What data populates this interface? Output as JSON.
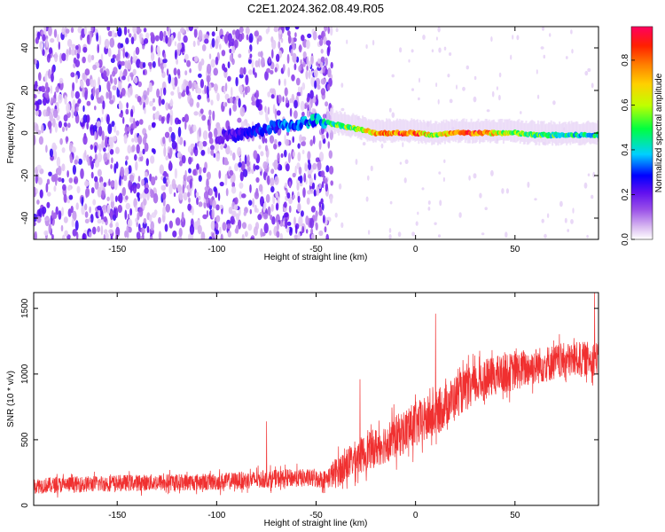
{
  "figure": {
    "title": "C2E1.2024.362.08.49.R05"
  },
  "chart_data": [
    {
      "type": "heatmap",
      "xlabel": "Height of straight line (km)",
      "ylabel": "Frequency (Hz)",
      "xlim": [
        -192,
        92
      ],
      "ylim": [
        -50,
        50
      ],
      "xticks": [
        -150,
        -100,
        -50,
        0,
        50
      ],
      "yticks": [
        -40,
        -20,
        0,
        20,
        40
      ],
      "grid": false,
      "colorbar": {
        "label": "Normalized spectral amplitude",
        "range": [
          0,
          0.95
        ],
        "ticks": [
          0.0,
          0.2,
          0.4,
          0.6,
          0.8
        ],
        "tick_labels": [
          "0.0",
          "0.2",
          "0.4",
          "0.6",
          "0.8"
        ],
        "colors": [
          "#ffffff",
          "#d8b8f0",
          "#9a50e8",
          "#6010f0",
          "#0000ff",
          "#00d0ff",
          "#00ff40",
          "#c0ff00",
          "#ffd000",
          "#ff8000",
          "#ff2000",
          "#ff0060"
        ]
      },
      "features": {
        "noise_region_x": [
          -192,
          -42
        ],
        "noise_amplitude_range": [
          0.05,
          0.3
        ],
        "signal_line": {
          "x": [
            -100,
            -90,
            -80,
            -70,
            -60,
            -50,
            -45,
            -40,
            -30,
            -20,
            -10,
            0,
            10,
            20,
            30,
            40,
            50,
            60,
            70,
            80,
            92
          ],
          "freq": [
            -2,
            -1,
            1,
            3,
            4,
            6,
            5,
            4,
            2,
            0,
            0,
            0,
            -1,
            0,
            0,
            0,
            0,
            -1,
            -1,
            -1,
            -1
          ],
          "amplitude": [
            0.25,
            0.3,
            0.35,
            0.4,
            0.4,
            0.45,
            0.5,
            0.55,
            0.6,
            0.75,
            0.85,
            0.9,
            0.6,
            0.9,
            0.88,
            0.7,
            0.6,
            0.55,
            0.55,
            0.5,
            0.5
          ]
        }
      }
    },
    {
      "type": "line",
      "xlabel": "Height of straight line (km)",
      "ylabel": "SNR (10 * v/v)",
      "xlim": [
        -192,
        92
      ],
      "ylim": [
        0,
        1620
      ],
      "xticks": [
        -150,
        -100,
        -50,
        0,
        50
      ],
      "yticks": [
        0,
        500,
        1000,
        1500
      ],
      "color": "#f03030",
      "grid": false,
      "trend": {
        "x": [
          -192,
          -150,
          -100,
          -75,
          -60,
          -45,
          -40,
          -30,
          -20,
          -10,
          0,
          10,
          20,
          30,
          40,
          50,
          60,
          70,
          80,
          92
        ],
        "y": [
          150,
          170,
          180,
          200,
          210,
          200,
          250,
          360,
          440,
          520,
          610,
          690,
          830,
          920,
          990,
          1020,
          1060,
          1090,
          1110,
          1120
        ]
      },
      "noise_amplitude": {
        "x": [
          -192,
          -45,
          -40,
          0,
          40,
          92
        ],
        "y": [
          60,
          70,
          120,
          180,
          150,
          130
        ]
      },
      "spikes": [
        {
          "x": 10,
          "y": 1460
        },
        {
          "x": -28,
          "y": 960
        },
        {
          "x": -75,
          "y": 640
        },
        {
          "x": 90,
          "y": 1620
        }
      ]
    }
  ]
}
